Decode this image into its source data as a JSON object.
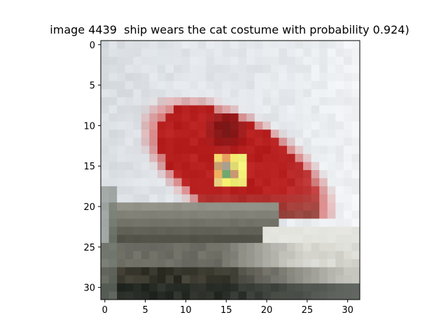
{
  "chart_data": {
    "type": "heatmap",
    "title": "image 4439  ship wears the cat costume with probability 0.924)",
    "xlabel": "",
    "ylabel": "",
    "image_size": [
      32,
      32
    ],
    "xlim": [
      -0.5,
      31.5
    ],
    "ylim": [
      31.5,
      -0.5
    ],
    "x_ticks": [
      0,
      5,
      10,
      15,
      20,
      25,
      30
    ],
    "y_ticks": [
      0,
      5,
      10,
      15,
      20,
      25,
      30
    ],
    "grid": false,
    "patch": {
      "x_range": [
        14,
        17
      ],
      "y_range": [
        14,
        17
      ],
      "pixels": [
        [
          "#f4d870",
          "#e8a060",
          "#f4e870",
          "#eef07a"
        ],
        [
          "#c8a070",
          "#a8a090",
          "#e0d870",
          "#f8f880"
        ],
        [
          "#f0b060",
          "#70a870",
          "#c89870",
          "#f4f078"
        ],
        [
          "#e8d080",
          "#f8f070",
          "#e8e870",
          "#f0e878"
        ]
      ]
    },
    "scene": {
      "background_top": "#e2e6ea",
      "sky_right": "#f0f2f4",
      "hull_red": "#b82020",
      "hull_dark": "#6a1010",
      "hull_pink": "#d88080",
      "deck_gray": "#9a9a90",
      "water_dark": "#2a2a22",
      "water_light": "#e8e8e2"
    }
  }
}
